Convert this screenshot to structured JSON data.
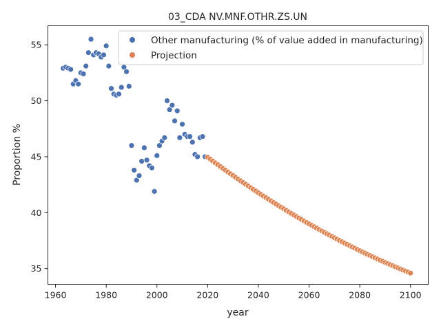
{
  "chart_data": {
    "type": "scatter",
    "title": "03_CDA NV.MNF.OTHR.ZS.UN",
    "xlabel": "year",
    "ylabel": "Proportion %",
    "xlim": [
      1957,
      2107
    ],
    "ylim": [
      33.6,
      56.7
    ],
    "xticks": [
      1960,
      1980,
      2000,
      2020,
      2040,
      2060,
      2080,
      2100
    ],
    "yticks": [
      35,
      40,
      45,
      50,
      55
    ],
    "grid": false,
    "legend_position": "top-right",
    "series": [
      {
        "name": "Other manufacturing (% of value added in manufacturing)",
        "color": "#4c72b0",
        "points": [
          [
            1963,
            52.9
          ],
          [
            1964,
            53.0
          ],
          [
            1965,
            52.9
          ],
          [
            1966,
            52.8
          ],
          [
            1967,
            51.5
          ],
          [
            1968,
            51.8
          ],
          [
            1969,
            51.5
          ],
          [
            1970,
            52.5
          ],
          [
            1971,
            52.4
          ],
          [
            1972,
            53.1
          ],
          [
            1973,
            54.3
          ],
          [
            1974,
            55.5
          ],
          [
            1975,
            54.1
          ],
          [
            1976,
            54.3
          ],
          [
            1977,
            54.2
          ],
          [
            1978,
            53.9
          ],
          [
            1979,
            54.1
          ],
          [
            1980,
            54.9
          ],
          [
            1981,
            53.1
          ],
          [
            1982,
            51.1
          ],
          [
            1983,
            50.6
          ],
          [
            1984,
            50.5
          ],
          [
            1985,
            50.6
          ],
          [
            1986,
            51.2
          ],
          [
            1987,
            53.0
          ],
          [
            1988,
            52.6
          ],
          [
            1989,
            51.3
          ],
          [
            1990,
            46.0
          ],
          [
            1991,
            43.8
          ],
          [
            1992,
            42.9
          ],
          [
            1993,
            43.3
          ],
          [
            1994,
            44.6
          ],
          [
            1995,
            45.8
          ],
          [
            1996,
            44.7
          ],
          [
            1997,
            44.2
          ],
          [
            1998,
            44.0
          ],
          [
            1999,
            41.9
          ],
          [
            2000,
            45.1
          ],
          [
            2001,
            46.0
          ],
          [
            2002,
            46.4
          ],
          [
            2003,
            46.7
          ],
          [
            2004,
            50.0
          ],
          [
            2005,
            49.2
          ],
          [
            2006,
            49.6
          ],
          [
            2007,
            48.2
          ],
          [
            2008,
            49.1
          ],
          [
            2009,
            46.7
          ],
          [
            2010,
            47.9
          ],
          [
            2011,
            47.0
          ],
          [
            2012,
            46.8
          ],
          [
            2013,
            46.8
          ],
          [
            2014,
            46.3
          ],
          [
            2015,
            45.2
          ],
          [
            2016,
            45.0
          ],
          [
            2017,
            46.7
          ],
          [
            2018,
            46.8
          ],
          [
            2019,
            45.0
          ]
        ]
      },
      {
        "name": "Projection",
        "color": "#dd8452",
        "start_year": 2020,
        "end_year": 2100,
        "start_value": 44.95,
        "end_value": 34.6,
        "curvature": 0.3
      }
    ]
  }
}
